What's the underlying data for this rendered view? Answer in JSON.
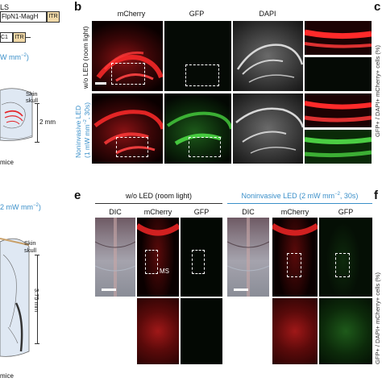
{
  "panel_a": {
    "construct_top_fragment": "FlpN1-MagH",
    "construct_top_left": "LS",
    "itr": "ITR",
    "construct_bottom_fragment": "C1",
    "unit_top": "W mm",
    "unit_top_exp": "−2",
    "unit_top_close": ")",
    "skin": "Skin",
    "skull": "skull",
    "depth_top": "2 mm",
    "mice_top": "mice"
  },
  "panel_b": {
    "letter": "b",
    "col_mcherry": "mCherry",
    "col_gfp": "GFP",
    "col_dapi": "DAPI",
    "row1_label": "w/o LED (room light)",
    "row2_label_1": "Noninvasive LED",
    "row2_label_2": "(1 mW mm",
    "row2_label_exp": "−2",
    "row2_label_3": ", 30s)"
  },
  "panel_c": {
    "letter": "c",
    "axis_fragment": "GFP+ / DAPI+ mCherry+ cells (%)"
  },
  "panel_d_fragment": {
    "unit_mid": "2 mW mm",
    "unit_mid_exp": "−2",
    "unit_mid_close": ")",
    "skin": "Skin",
    "skull": "skull",
    "depth_bottom": "3.75 mm",
    "mice_bottom": "mice"
  },
  "panel_e": {
    "letter": "e",
    "group1": "w/o LED (room light)",
    "group2_a": "Noninvasive LED (2 mW mm",
    "group2_exp": "−2",
    "group2_b": ", 30s)",
    "col_dic_1": "DIC",
    "col_mcherry_1": "mCherry",
    "col_gfp_1": "GFP",
    "col_dic_2": "DIC",
    "col_mcherry_2": "mCherry",
    "col_gfp_2": "GFP",
    "ms_label": "MS"
  },
  "panel_f": {
    "letter": "f",
    "axis_fragment": "GFP+ / DAPI+ mCherry+ cells (%)"
  },
  "colors": {
    "accent_blue": "#3a8fc9",
    "mcherry_red": "#e3262a",
    "gfp_green": "#3fbf3a",
    "construct_box": "#e8a74a"
  }
}
